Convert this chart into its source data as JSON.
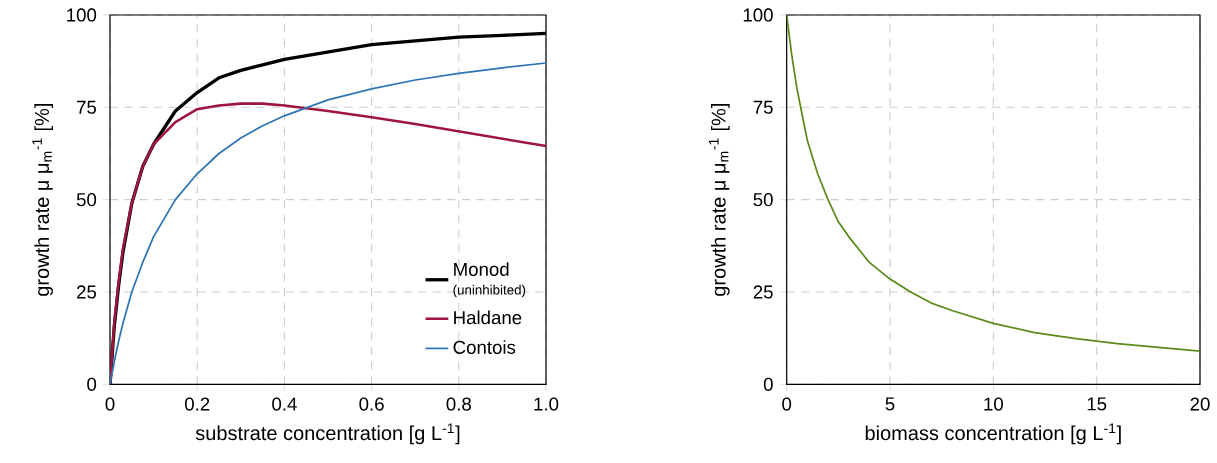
{
  "chart_data": [
    {
      "type": "line",
      "xlabel": "substrate concentration [g L$^{-1}$]",
      "ylabel": "growth rate μ μ$_{m}$$^{-1}$ [%]",
      "x": [
        0,
        0.01,
        0.02,
        0.03,
        0.05,
        0.075,
        0.1,
        0.15,
        0.2,
        0.25,
        0.3,
        0.35,
        0.4,
        0.5,
        0.6,
        0.7,
        0.8,
        0.9,
        1.0
      ],
      "series": [
        {
          "name": "Monod",
          "color": "#000000",
          "values": [
            0,
            16,
            27,
            36,
            49,
            59,
            65,
            74,
            79,
            83,
            85,
            86.5,
            88,
            90,
            92,
            93,
            94,
            94.5,
            95
          ]
        },
        {
          "name": "Haldane",
          "color": "#a0153e",
          "values": [
            0,
            17,
            28,
            37,
            49,
            59,
            65,
            71,
            74.5,
            75.5,
            76,
            76,
            75.5,
            74,
            72.3,
            70.5,
            68.5,
            66.5,
            64.5
          ]
        },
        {
          "name": "Contois",
          "color": "#2e75b6",
          "values": [
            0,
            6.3,
            11.8,
            16.7,
            25,
            33,
            40,
            50,
            57,
            62.5,
            66.7,
            70,
            72.7,
            77,
            80,
            82.4,
            84.2,
            85.7,
            87
          ]
        }
      ],
      "annotations": [
        "(uninhibited)"
      ],
      "xlim": [
        0,
        1
      ],
      "ylim": [
        0,
        100
      ],
      "xticks": [
        0,
        0.2,
        0.4,
        0.6,
        0.8,
        {
          "value": 1,
          "label": "1.0"
        }
      ],
      "yticks": [
        0,
        25,
        50,
        75,
        100
      ],
      "grid": true,
      "legend": "bottom right"
    },
    {
      "type": "line",
      "xlabel": "biomass concentration [g L$^{-1}$]",
      "ylabel": "growth rate μ μ$_{m}$$^{-1}$ [%]",
      "x": [
        0,
        0.25,
        0.5,
        0.75,
        1,
        1.5,
        2,
        2.5,
        3,
        4,
        5,
        6,
        7,
        8,
        10,
        12,
        14,
        16,
        18,
        20
      ],
      "series": [
        {
          "color": "#5b8c1a",
          "values": [
            100,
            89,
            80,
            73,
            66,
            57,
            50,
            44,
            40,
            33,
            28.5,
            25,
            22,
            20,
            16.5,
            14,
            12.4,
            11,
            10,
            9
          ]
        }
      ],
      "xlim": [
        0,
        20
      ],
      "ylim": [
        0,
        100
      ],
      "xticks": [
        0,
        5,
        10,
        15,
        20
      ],
      "yticks": [
        0,
        25,
        50,
        75,
        100
      ],
      "grid": true
    }
  ]
}
